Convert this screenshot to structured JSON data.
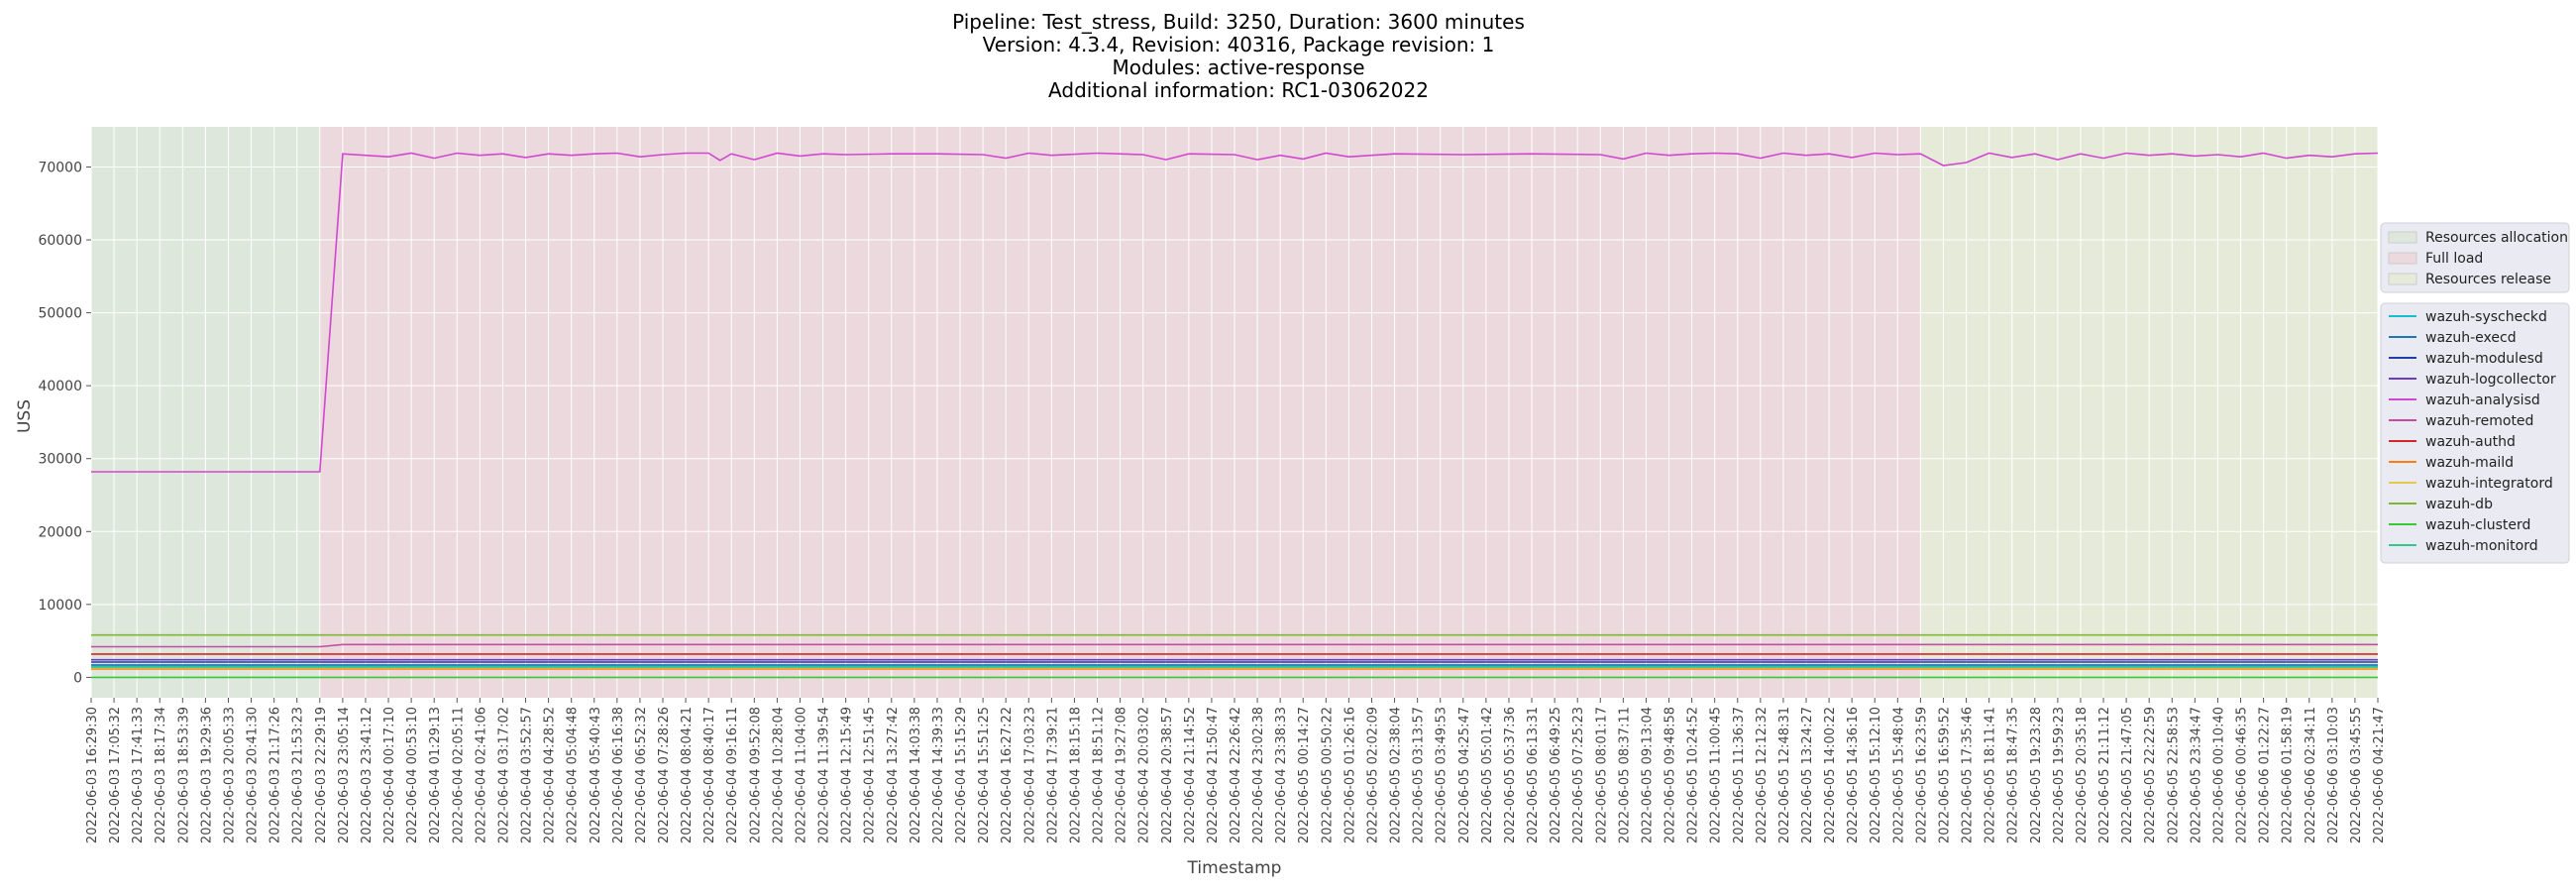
{
  "chart_data": {
    "type": "line",
    "title_lines": [
      "Pipeline: Test_stress, Build: 3250, Duration: 3600 minutes",
      "Version: 4.3.4, Revision: 40316, Package revision: 1",
      "Modules: active-response",
      "Additional information: RC1-03062022"
    ],
    "xlabel": "Timestamp",
    "ylabel": "USS",
    "ylim": [
      -2800,
      75500
    ],
    "yticks": [
      0,
      10000,
      20000,
      30000,
      40000,
      50000,
      60000,
      70000
    ],
    "grid": true,
    "phase_legend_position": "right-upper",
    "series_legend_position": "right-middle",
    "phases": [
      {
        "name": "Resources allocation",
        "start": 0,
        "end": 10,
        "color": "#dde7dc"
      },
      {
        "name": "Full load",
        "start": 10,
        "end": 80,
        "color": "#ebd9dd"
      },
      {
        "name": "Resources release",
        "start": 80,
        "end": 100,
        "color": "#e6ebd9"
      }
    ],
    "x_ticks": [
      "2022-06-03 16:29:30",
      "2022-06-03 17:05:32",
      "2022-06-03 17:41:33",
      "2022-06-03 18:17:34",
      "2022-06-03 18:53:39",
      "2022-06-03 19:29:36",
      "2022-06-03 20:05:33",
      "2022-06-03 20:41:30",
      "2022-06-03 21:17:26",
      "2022-06-03 21:53:23",
      "2022-06-03 22:29:19",
      "2022-06-03 23:05:14",
      "2022-06-03 23:41:12",
      "2022-06-04 00:17:10",
      "2022-06-04 00:53:10",
      "2022-06-04 01:29:13",
      "2022-06-04 02:05:11",
      "2022-06-04 02:41:06",
      "2022-06-04 03:17:02",
      "2022-06-04 03:52:57",
      "2022-06-04 04:28:52",
      "2022-06-04 05:04:48",
      "2022-06-04 05:40:43",
      "2022-06-04 06:16:38",
      "2022-06-04 06:52:32",
      "2022-06-04 07:28:26",
      "2022-06-04 08:04:21",
      "2022-06-04 08:40:17",
      "2022-06-04 09:16:11",
      "2022-06-04 09:52:08",
      "2022-06-04 10:28:04",
      "2022-06-04 11:04:00",
      "2022-06-04 11:39:54",
      "2022-06-04 12:15:49",
      "2022-06-04 12:51:45",
      "2022-06-04 13:27:42",
      "2022-06-04 14:03:38",
      "2022-06-04 14:39:33",
      "2022-06-04 15:15:29",
      "2022-06-04 15:51:25",
      "2022-06-04 16:27:22",
      "2022-06-04 17:03:23",
      "2022-06-04 17:39:21",
      "2022-06-04 18:15:18",
      "2022-06-04 18:51:12",
      "2022-06-04 19:27:08",
      "2022-06-04 20:03:02",
      "2022-06-04 20:38:57",
      "2022-06-04 21:14:52",
      "2022-06-04 21:50:47",
      "2022-06-04 22:26:42",
      "2022-06-04 23:02:38",
      "2022-06-04 23:38:33",
      "2022-06-05 00:14:27",
      "2022-06-05 00:50:22",
      "2022-06-05 01:26:16",
      "2022-06-05 02:02:09",
      "2022-06-05 02:38:04",
      "2022-06-05 03:13:57",
      "2022-06-05 03:49:53",
      "2022-06-05 04:25:47",
      "2022-06-05 05:01:42",
      "2022-06-05 05:37:36",
      "2022-06-05 06:13:31",
      "2022-06-05 06:49:25",
      "2022-06-05 07:25:23",
      "2022-06-05 08:01:17",
      "2022-06-05 08:37:11",
      "2022-06-05 09:13:04",
      "2022-06-05 09:48:58",
      "2022-06-05 10:24:52",
      "2022-06-05 11:00:45",
      "2022-06-05 11:36:37",
      "2022-06-05 12:12:32",
      "2022-06-05 12:48:31",
      "2022-06-05 13:24:27",
      "2022-06-05 14:00:22",
      "2022-06-05 14:36:16",
      "2022-06-05 15:12:10",
      "2022-06-05 15:48:04",
      "2022-06-05 16:23:59",
      "2022-06-05 16:59:52",
      "2022-06-05 17:35:46",
      "2022-06-05 18:11:41",
      "2022-06-05 18:47:35",
      "2022-06-05 19:23:28",
      "2022-06-05 19:59:23",
      "2022-06-05 20:35:18",
      "2022-06-05 21:11:12",
      "2022-06-05 21:47:05",
      "2022-06-05 22:22:59",
      "2022-06-05 22:58:53",
      "2022-06-05 23:34:47",
      "2022-06-06 00:10:40",
      "2022-06-06 00:46:35",
      "2022-06-06 01:22:27",
      "2022-06-06 01:58:19",
      "2022-06-06 02:34:11",
      "2022-06-06 03:10:03",
      "2022-06-06 03:45:55",
      "2022-06-06 04:21:47"
    ],
    "series": [
      {
        "name": "wazuh-syscheckd",
        "color": "#17becf",
        "x": [
          0,
          100
        ],
        "values": [
          1500,
          1500
        ]
      },
      {
        "name": "wazuh-execd",
        "color": "#1f77b4",
        "x": [
          0,
          100
        ],
        "values": [
          1700,
          1700
        ]
      },
      {
        "name": "wazuh-modulesd",
        "color": "#1f3fa8",
        "x": [
          0,
          100
        ],
        "values": [
          2100,
          2100
        ]
      },
      {
        "name": "wazuh-logcollector",
        "color": "#6a3cc4",
        "x": [
          0,
          100
        ],
        "values": [
          2400,
          2400
        ]
      },
      {
        "name": "wazuh-analysisd",
        "color": "#d147d1",
        "x": [
          0,
          10,
          11,
          13,
          14,
          15,
          16,
          17,
          18,
          19,
          20,
          21,
          22,
          23,
          24,
          25,
          26,
          27,
          27.5,
          28,
          29,
          30,
          31,
          32,
          33,
          35,
          37,
          39,
          40,
          41,
          42,
          44,
          46,
          47,
          48,
          50,
          51,
          52,
          53,
          54,
          55,
          57,
          60,
          63,
          66,
          67,
          68,
          69,
          70,
          71,
          72,
          73,
          74,
          75,
          76,
          77,
          78,
          79,
          80,
          81,
          82,
          83,
          84,
          85,
          86,
          87,
          88,
          89,
          90,
          91,
          92,
          93,
          94,
          95,
          96,
          97,
          98,
          99,
          100
        ],
        "values": [
          28200,
          28200,
          71800,
          71400,
          71900,
          71200,
          71900,
          71600,
          71800,
          71300,
          71800,
          71600,
          71800,
          71900,
          71400,
          71700,
          71900,
          71900,
          70900,
          71800,
          71000,
          71900,
          71500,
          71800,
          71700,
          71800,
          71800,
          71700,
          71200,
          71900,
          71600,
          71900,
          71700,
          71000,
          71800,
          71700,
          71000,
          71600,
          71100,
          71900,
          71400,
          71800,
          71700,
          71800,
          71700,
          71100,
          71900,
          71600,
          71800,
          71900,
          71800,
          71200,
          71900,
          71600,
          71800,
          71300,
          71900,
          71700,
          71800,
          70200,
          70600,
          71900,
          71300,
          71800,
          71000,
          71800,
          71200,
          71900,
          71600,
          71800,
          71500,
          71700,
          71400,
          71900,
          71200,
          71600,
          71400,
          71800,
          71900
        ]
      },
      {
        "name": "wazuh-remoted",
        "color": "#c44da0",
        "x": [
          0,
          10,
          11,
          100
        ],
        "values": [
          4200,
          4200,
          4500,
          4500
        ]
      },
      {
        "name": "wazuh-authd",
        "color": "#d62728",
        "x": [
          0,
          100
        ],
        "values": [
          3200,
          3200
        ]
      },
      {
        "name": "wazuh-maild",
        "color": "#ff7f0e",
        "x": [
          0,
          100
        ],
        "values": [
          1150,
          1150
        ]
      },
      {
        "name": "wazuh-integratord",
        "color": "#e8c74d",
        "x": [
          0,
          100
        ],
        "values": [
          1300,
          1300
        ]
      },
      {
        "name": "wazuh-db",
        "color": "#7fb832",
        "x": [
          0,
          100
        ],
        "values": [
          5800,
          5800
        ]
      },
      {
        "name": "wazuh-clusterd",
        "color": "#38c838",
        "x": [
          0,
          100
        ],
        "values": [
          0,
          0
        ]
      },
      {
        "name": "wazuh-monitord",
        "color": "#30c890",
        "x": [
          0,
          100
        ],
        "values": [
          1400,
          1400
        ]
      }
    ]
  }
}
